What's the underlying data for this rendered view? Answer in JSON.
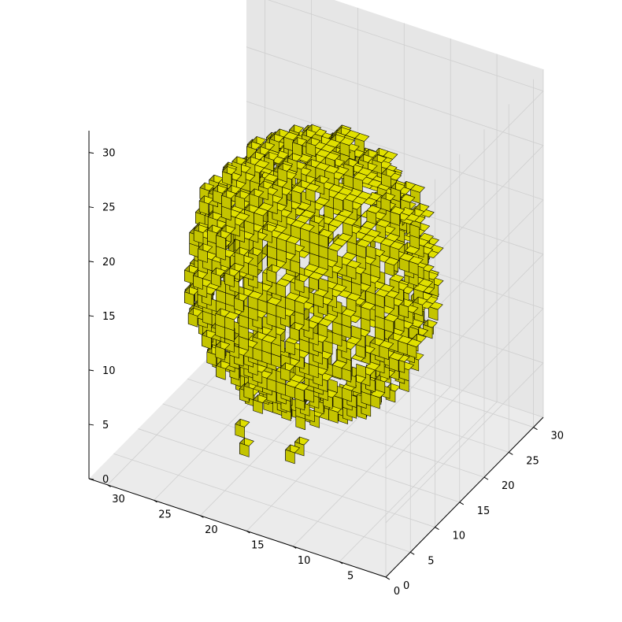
{
  "chart_data": {
    "type": "voxel",
    "title": "",
    "xlabel": "",
    "ylabel": "",
    "zlabel": "",
    "xlim": [
      0,
      32
    ],
    "ylim": [
      0,
      32
    ],
    "zlim": [
      0,
      32
    ],
    "x_ticks": [
      "0",
      "5",
      "10",
      "15",
      "20",
      "25",
      "30"
    ],
    "y_ticks": [
      "0",
      "5",
      "10",
      "15",
      "20",
      "25",
      "30"
    ],
    "z_ticks": [
      "0",
      "5",
      "10",
      "15",
      "20",
      "25",
      "30"
    ],
    "grid": true,
    "voxel_color": "#c8c800",
    "edge_color": "#000000",
    "pane_colors": [
      "#f2f2f2",
      "#e6e6e6",
      "#ebebeb"
    ],
    "structure": "irregular roughly spherical blob of unit voxels, centered near (16,16,15), radius about 11, with protruding arms and single voxels"
  }
}
